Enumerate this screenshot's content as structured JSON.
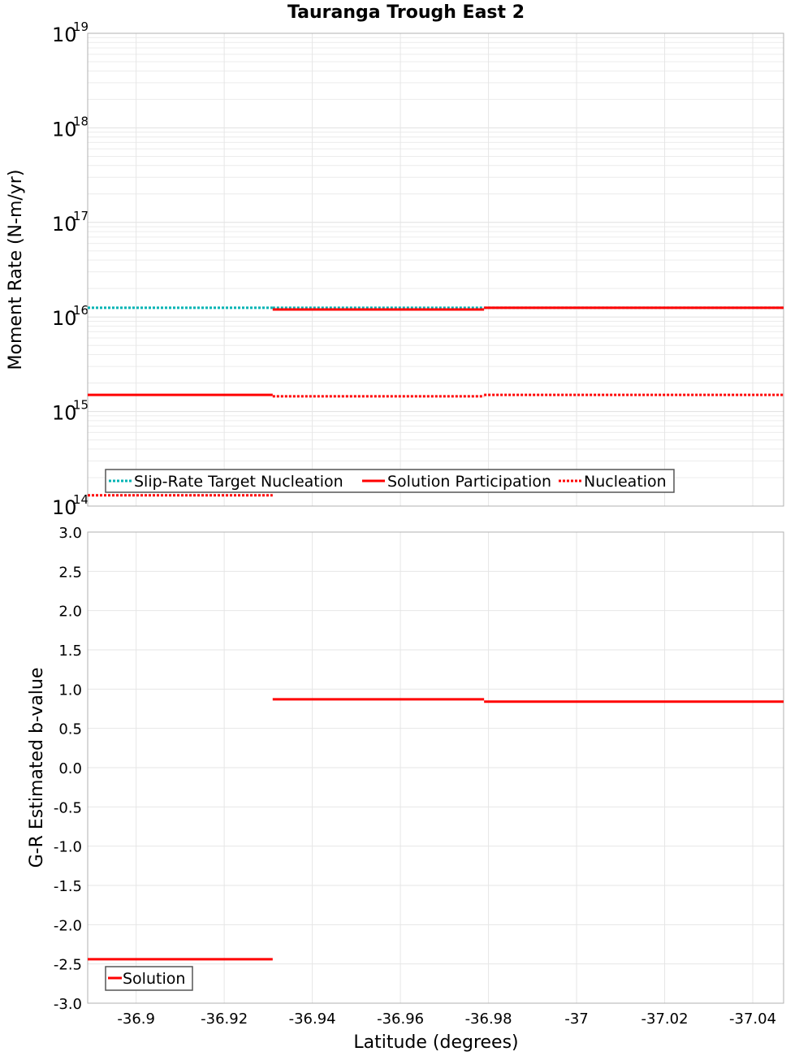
{
  "chart_data": [
    {
      "type": "line",
      "title": "Tauranga Trough East 2",
      "xlabel": "Latitude (degrees)",
      "ylabel": "Moment Rate (N-m/yr)",
      "yscale": "log",
      "ylim": [
        100000000000000.0,
        1e+19
      ],
      "xlim": [
        -36.889,
        -37.047
      ],
      "grid": true,
      "legend_position": "bottom-left",
      "ytick_exponents": [
        "14",
        "15",
        "16",
        "17",
        "18",
        "19"
      ],
      "ytick_base": "10",
      "segment_edges": [
        -36.889,
        -36.931,
        -36.979,
        -37.047
      ],
      "series": [
        {
          "name": "Slip-Rate Target Nucleation",
          "color": "#00b4b4",
          "style": "dotted",
          "values": [
            1.25e+16,
            1.25e+16,
            1.25e+16
          ]
        },
        {
          "name": "Solution Participation",
          "color": "#ff0000",
          "style": "solid",
          "values": [
            1500000000000000.0,
            1.2e+16,
            1.25e+16
          ]
        },
        {
          "name": "Nucleation",
          "color": "#ff0000",
          "style": "dotted",
          "values": [
            130000000000000.0,
            1450000000000000.0,
            1500000000000000.0
          ]
        }
      ]
    },
    {
      "type": "line",
      "xlabel": "Latitude (degrees)",
      "ylabel": "G-R Estimated b-value",
      "ylim": [
        -3.0,
        3.0
      ],
      "xlim": [
        -36.889,
        -37.047
      ],
      "grid": true,
      "legend_position": "bottom-left",
      "yticks": [
        "3.0",
        "2.5",
        "2.0",
        "1.5",
        "1.0",
        "0.5",
        "0.0",
        "-0.5",
        "-1.0",
        "-1.5",
        "-2.0",
        "-2.5",
        "-3.0"
      ],
      "xticks": [
        "-36.9",
        "-36.92",
        "-36.94",
        "-36.96",
        "-36.98",
        "-37",
        "-37.02",
        "-37.04"
      ],
      "segment_edges": [
        -36.889,
        -36.931,
        -36.979,
        -37.047
      ],
      "series": [
        {
          "name": "Solution",
          "color": "#ff0000",
          "style": "solid",
          "values": [
            -2.44,
            0.87,
            0.84
          ]
        }
      ]
    }
  ]
}
